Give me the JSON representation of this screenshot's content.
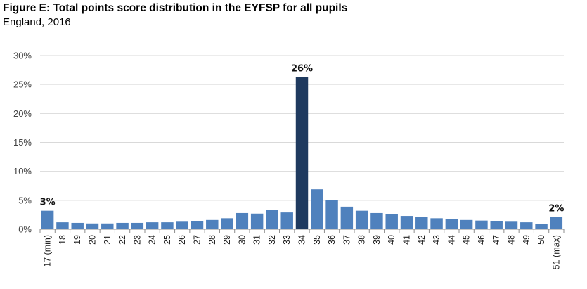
{
  "title": "Figure E: Total points score distribution in the EYFSP for all pupils",
  "subtitle": "England, 2016",
  "colors": {
    "bar": "#4f81bd",
    "highlight": "#1f3a5f",
    "grid": "#d9d9d9",
    "axis": "#8c8c8c"
  },
  "chart_data": {
    "type": "bar",
    "categories": [
      "17 (min)",
      "18",
      "19",
      "20",
      "21",
      "22",
      "23",
      "24",
      "25",
      "26",
      "27",
      "28",
      "29",
      "30",
      "31",
      "32",
      "33",
      "34",
      "35",
      "36",
      "37",
      "38",
      "39",
      "40",
      "41",
      "42",
      "43",
      "44",
      "45",
      "46",
      "47",
      "48",
      "49",
      "50",
      "51 (max)"
    ],
    "values": [
      3.2,
      1.2,
      1.1,
      1.0,
      1.0,
      1.1,
      1.1,
      1.2,
      1.2,
      1.3,
      1.4,
      1.6,
      1.9,
      2.8,
      2.7,
      3.3,
      2.9,
      26.3,
      6.9,
      5.0,
      3.9,
      3.2,
      2.8,
      2.6,
      2.3,
      2.1,
      1.9,
      1.8,
      1.6,
      1.5,
      1.4,
      1.3,
      1.2,
      0.9,
      2.1
    ],
    "highlight_index": 17,
    "data_labels": [
      {
        "index": 0,
        "text": "3%"
      },
      {
        "index": 17,
        "text": "26%"
      },
      {
        "index": 34,
        "text": "2%"
      }
    ],
    "ylim": [
      0,
      30
    ],
    "yticks": [
      "0%",
      "5%",
      "10%",
      "15%",
      "20%",
      "25%",
      "30%"
    ],
    "xlabel": "",
    "ylabel": "",
    "grid": true,
    "legend": "none"
  }
}
